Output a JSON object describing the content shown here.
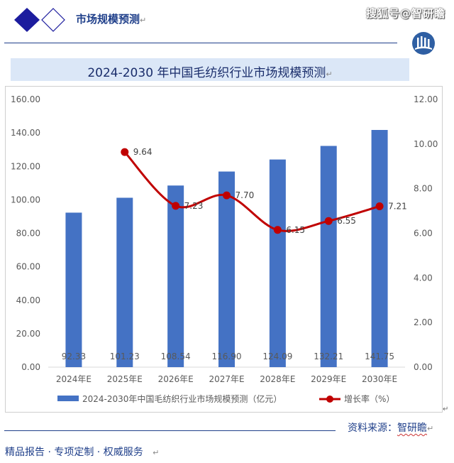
{
  "header": {
    "title": "市场规模预测",
    "watermark": "搜狐号@智研瞻"
  },
  "chart_title": "2024-2030 年中国毛纺织行业市场规模预测",
  "chart_data": {
    "type": "bar",
    "categories": [
      "2024年E",
      "2025年E",
      "2026年E",
      "2027年E",
      "2028年E",
      "2029年E",
      "2030年E"
    ],
    "series": [
      {
        "name": "2024-2030年中国毛纺织行业市场规模预测（亿元）",
        "type": "bar",
        "axis": "left",
        "color": "#4472c4",
        "values": [
          92.33,
          101.23,
          108.54,
          116.9,
          124.09,
          132.21,
          141.75
        ],
        "labels": [
          "92.33",
          "101.23",
          "108.54",
          "116.90",
          "124.09",
          "132.21",
          "141.75"
        ]
      },
      {
        "name": "增长率（%）",
        "type": "line",
        "axis": "right",
        "color": "#c00000",
        "values": [
          null,
          9.64,
          7.23,
          7.7,
          6.15,
          6.55,
          7.21
        ],
        "labels": [
          "",
          "9.64",
          "7.23",
          "7.70",
          "6.15",
          "6.55",
          "7.21"
        ]
      }
    ],
    "y_left": {
      "min": 0,
      "max": 160,
      "step": 20,
      "ticks": [
        "0.00",
        "20.00",
        "40.00",
        "60.00",
        "80.00",
        "100.00",
        "120.00",
        "140.00",
        "160.00"
      ]
    },
    "y_right": {
      "min": 0,
      "max": 12,
      "step": 2,
      "ticks": [
        "0.00",
        "2.00",
        "4.00",
        "6.00",
        "8.00",
        "10.00",
        "12.00"
      ]
    },
    "grid": false,
    "legend_position": "bottom"
  },
  "footer": {
    "source_label": "资料来源：",
    "source_brand": "智研瞻",
    "tagline": "精品报告 · 专项定制 · 权威服务"
  }
}
